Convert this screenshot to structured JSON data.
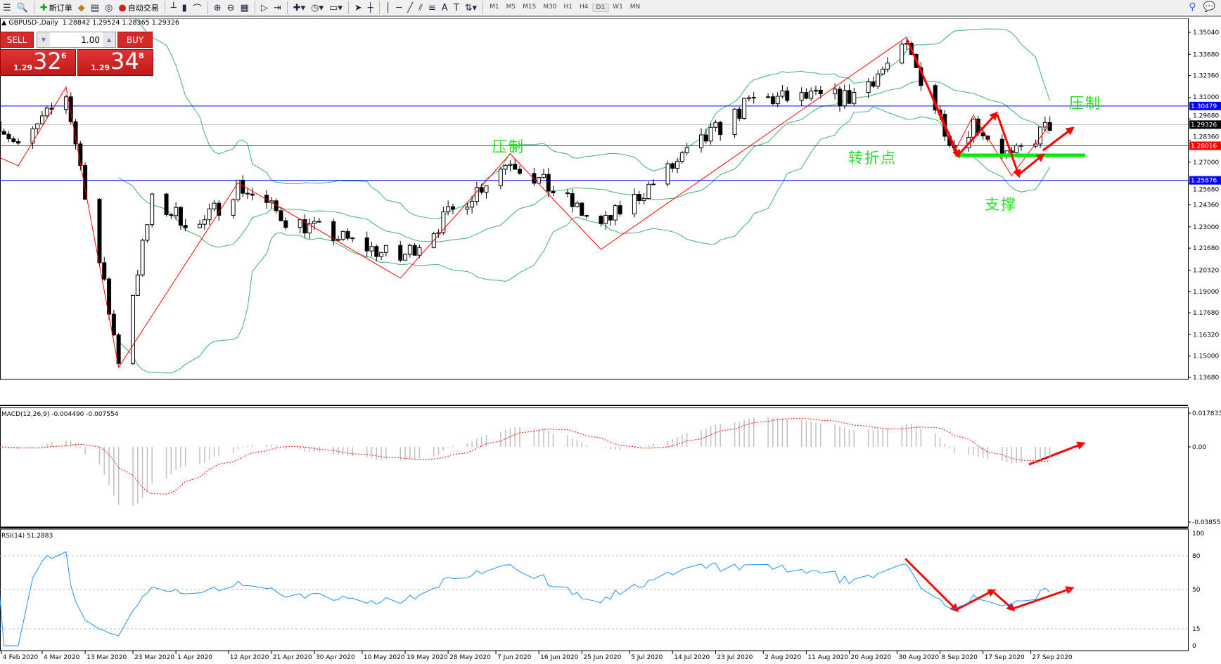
{
  "toolbar": {
    "new_order": "新订单",
    "auto_trading": "自动交易",
    "timeframes": [
      "M1",
      "M5",
      "M15",
      "M30",
      "H1",
      "H4",
      "D1",
      "W1",
      "MN"
    ],
    "active_timeframe": "D1"
  },
  "chart_header": {
    "symbol": "GBPUSD-,Daily",
    "ohlc": "1.28842 1.29524 1.28365 1.29326"
  },
  "trade_panel": {
    "sell_label": "SELL",
    "buy_label": "BUY",
    "lot": "1.00",
    "sell_prefix": "1.29",
    "sell_big": "32",
    "sell_sup": "6",
    "buy_prefix": "1.29",
    "buy_big": "34",
    "buy_sup": "8"
  },
  "annotations": {
    "resist_1": "压制",
    "resist_2": "压制",
    "pivot": "转折点",
    "support": "支撑"
  },
  "colors": {
    "bull": "#ffffff",
    "bear": "#000000",
    "bollinger": "#3cb371",
    "zigzag": "#ff0000",
    "resistance_line": "#0000ff",
    "pivot_line": "#ff0000",
    "support_bar": "#00ee00",
    "macd_hist": "#c0c0c0",
    "macd_signal": "#ff0000",
    "rsi": "#1e90ff"
  },
  "chart_data": [
    {
      "type": "candlestick",
      "title": "GBPUSD-,Daily",
      "y_ticks": [
        "1.35040",
        "1.33680",
        "1.32360",
        "1.31000",
        "1.29680",
        "1.28360",
        "1.27000",
        "1.25680",
        "1.24360",
        "1.23000",
        "1.21680",
        "1.20320",
        "1.19000",
        "1.17680",
        "1.16320",
        "1.15000",
        "1.13680"
      ],
      "ylim": [
        1.1368,
        1.3504
      ],
      "x_ticks": [
        "4 Feb 2020",
        "4 Mar 2020",
        "13 Mar 2020",
        "23 Mar 2020",
        "1 Apr 2020",
        "12 Apr 2020",
        "21 Apr 2020",
        "30 Apr 2020",
        "10 May 2020",
        "19 May 2020",
        "28 May 2020",
        "7 Jun 2020",
        "16 Jun 2020",
        "25 Jun 2020",
        "5 Jul 2020",
        "14 Jul 2020",
        "23 Jul 2020",
        "2 Aug 2020",
        "11 Aug 2020",
        "20 Aug 2020",
        "30 Aug 2020",
        "8 Sep 2020",
        "17 Sep 2020",
        "27 Sep 2020"
      ],
      "price_path": [
        [
          "2020-02-24",
          1.295
        ],
        [
          "2020-02-28",
          1.278
        ],
        [
          "2020-03-09",
          1.312
        ],
        [
          "2020-03-20",
          1.148
        ],
        [
          "2020-03-27",
          1.245
        ],
        [
          "2020-04-06",
          1.23
        ],
        [
          "2020-04-14",
          1.256
        ],
        [
          "2020-04-24",
          1.235
        ],
        [
          "2020-05-18",
          1.21
        ],
        [
          "2020-06-10",
          1.272
        ],
        [
          "2020-06-29",
          1.23
        ],
        [
          "2020-07-31",
          1.309
        ],
        [
          "2020-08-20",
          1.31
        ],
        [
          "2020-09-01",
          1.34
        ],
        [
          "2020-09-11",
          1.28
        ],
        [
          "2020-09-15",
          1.295
        ],
        [
          "2020-09-23",
          1.272
        ],
        [
          "2020-10-01",
          1.2933
        ]
      ],
      "zigzag": [
        [
          "2020-02-23",
          1.2743
        ],
        [
          "2020-02-28",
          1.2678
        ],
        [
          "2020-03-09",
          1.3165
        ],
        [
          "2020-03-20",
          1.143
        ],
        [
          "2020-04-14",
          1.2573
        ],
        [
          "2020-05-18",
          1.1982
        ],
        [
          "2020-06-10",
          1.2752
        ],
        [
          "2020-06-29",
          1.216
        ],
        [
          "2020-09-01",
          1.3474
        ],
        [
          "2020-09-11",
          1.2763
        ],
        [
          "2020-09-15",
          1.2991
        ],
        [
          "2020-09-23",
          1.2617
        ],
        [
          "2020-10-01",
          1.2933
        ]
      ],
      "horizontal_lines": [
        {
          "label": "1.30479",
          "value": 1.30479,
          "color": "#0000ff"
        },
        {
          "label": "1.29326",
          "value": 1.29326,
          "color": "#000000"
        },
        {
          "label": "1.28016",
          "value": 1.28016,
          "color": "#ff0000"
        },
        {
          "label": "1.25876",
          "value": 1.25876,
          "color": "#0000ff"
        }
      ],
      "bollinger": "20,2"
    },
    {
      "type": "bar",
      "title": "MACD(12,26,9) -0.004490 -0.007554",
      "y_ticks": [
        "0.017833",
        "0.00",
        "-0.038559"
      ],
      "ylim": [
        -0.038559,
        0.017833
      ]
    },
    {
      "type": "line",
      "title": "RSI(14) 51.2883",
      "y_ticks": [
        "100",
        "80",
        "50",
        "15",
        "0"
      ],
      "levels": [
        80,
        50,
        15
      ],
      "ylim": [
        0,
        100
      ]
    }
  ]
}
